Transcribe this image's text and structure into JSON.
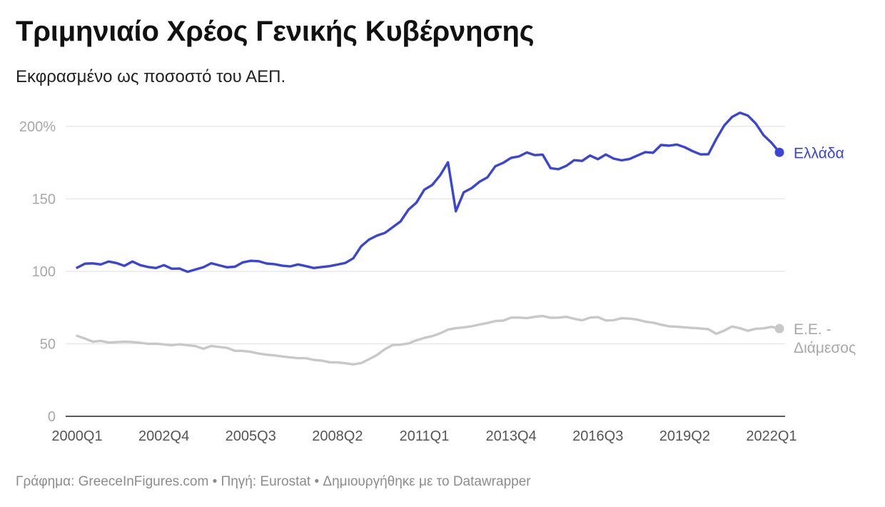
{
  "title": "Τριμηνιαίο Χρέος Γενικής Κυβέρνησης",
  "subtitle": "Εκφρασμένο ως ποσοστό του ΑΕΠ.",
  "footer": "Γράφημα: GreeceInFigures.com • Πηγή: Eurostat • Δημιουργήθηκε με το Datawrapper",
  "chart_data": {
    "type": "line",
    "x_start": "2000Q1",
    "x_end": "2022Q1",
    "x_ticks": [
      "2000Q1",
      "2002Q4",
      "2005Q3",
      "2008Q2",
      "2011Q1",
      "2013Q4",
      "2016Q3",
      "2019Q2",
      "2022Q1"
    ],
    "y_ticks": [
      "0",
      "50",
      "100",
      "150",
      "200%"
    ],
    "y_tick_values": [
      0,
      50,
      100,
      150,
      200
    ],
    "ylim": [
      0,
      200
    ],
    "grid": true,
    "series": [
      {
        "name": "Ελλάδα",
        "label": "Ελλάδα",
        "color": "#3a44d6",
        "values": [
          102.5,
          105.3,
          105.5,
          104.8,
          106.8,
          105.7,
          103.8,
          106.8,
          104.3,
          103.0,
          102.3,
          104.3,
          101.8,
          101.9,
          99.7,
          101.3,
          102.8,
          105.6,
          104.2,
          102.8,
          103.2,
          106.2,
          107.3,
          107.0,
          105.4,
          105.0,
          103.9,
          103.4,
          104.8,
          103.6,
          102.3,
          103.0,
          103.6,
          104.7,
          105.8,
          109.0,
          117.3,
          121.9,
          124.7,
          126.5,
          130.5,
          134.5,
          142.6,
          147.4,
          156.3,
          159.6,
          166.2,
          175.2,
          141.5,
          154.6,
          157.4,
          161.8,
          164.9,
          172.5,
          174.9,
          178.3,
          179.3,
          182.0,
          180.2,
          180.5,
          171.2,
          170.5,
          172.8,
          176.7,
          176.2,
          179.9,
          177.4,
          180.6,
          177.8,
          176.6,
          177.5,
          179.9,
          182.2,
          181.8,
          187.2,
          186.7,
          187.5,
          185.6,
          182.9,
          180.7,
          180.8,
          191.3,
          200.6,
          206.5,
          209.4,
          207.5,
          202.0,
          193.9,
          188.7,
          182.1
        ]
      },
      {
        "name": "Ε.Ε. - Διάμεσος",
        "label_lines": [
          "Ε.Ε. -",
          "Διάμεσος"
        ],
        "color": "#c8c8c8",
        "values": [
          55.5,
          53.6,
          51.5,
          52.0,
          50.9,
          51.2,
          51.5,
          51.3,
          50.8,
          50.0,
          50.1,
          49.6,
          49.0,
          49.7,
          49.0,
          48.4,
          46.6,
          48.5,
          47.9,
          47.2,
          45.2,
          45.1,
          44.5,
          43.3,
          42.5,
          42.0,
          41.3,
          40.7,
          40.1,
          40.1,
          38.9,
          38.4,
          37.3,
          37.2,
          36.6,
          35.8,
          36.7,
          39.4,
          42.3,
          46.3,
          49.2,
          49.4,
          50.3,
          52.4,
          54.1,
          55.3,
          57.2,
          59.8,
          60.8,
          61.4,
          62.1,
          63.3,
          64.4,
          65.7,
          66.0,
          68.1,
          68.1,
          67.8,
          68.6,
          69.2,
          68.0,
          68.1,
          68.6,
          67.3,
          66.2,
          68.1,
          68.4,
          66.1,
          66.3,
          67.7,
          67.4,
          66.7,
          65.3,
          64.6,
          63.2,
          62.1,
          61.8,
          61.4,
          61.0,
          60.6,
          60.1,
          56.9,
          59.1,
          61.9,
          60.8,
          59.0,
          60.4,
          60.7,
          61.7,
          60.5
        ]
      }
    ]
  }
}
